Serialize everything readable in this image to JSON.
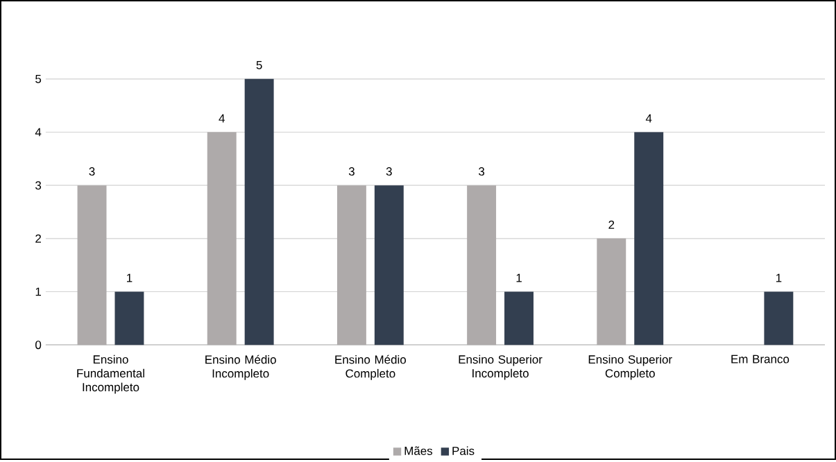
{
  "chart_data": {
    "type": "bar",
    "categories": [
      "Ensino Fundamental Incompleto",
      "Ensino Médio Incompleto",
      "Ensino Médio Completo",
      "Ensino Superior Incompleto",
      "Ensino Superior Completo",
      "Em Branco"
    ],
    "series": [
      {
        "name": "Mães",
        "color": "#aeaaaa",
        "values": [
          3,
          4,
          3,
          3,
          2,
          null
        ]
      },
      {
        "name": "Pais",
        "color": "#333f50",
        "values": [
          1,
          5,
          3,
          1,
          4,
          1
        ]
      }
    ],
    "ylim": [
      0,
      5
    ],
    "yticks": [
      0,
      1,
      2,
      3,
      4,
      5
    ],
    "grid": "y",
    "legend": "bottom",
    "data_labels": true
  }
}
